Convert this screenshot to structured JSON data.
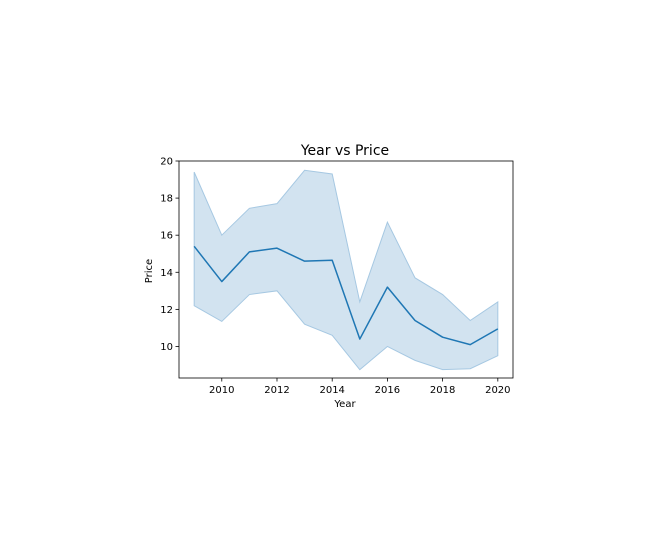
{
  "chart_data": {
    "type": "line",
    "title": "Year vs Price",
    "xlabel": "Year",
    "ylabel": "Price",
    "x": [
      2009,
      2010,
      2011,
      2012,
      2013,
      2014,
      2015,
      2016,
      2017,
      2018,
      2019,
      2020
    ],
    "series": [
      {
        "values": [
          15.4,
          13.5,
          15.1,
          15.3,
          14.6,
          14.65,
          10.4,
          13.2,
          11.4,
          10.5,
          10.1,
          10.95
        ],
        "ci_lower": [
          12.2,
          11.35,
          12.8,
          13.0,
          11.2,
          10.6,
          8.75,
          10.0,
          9.25,
          8.75,
          8.8,
          9.5
        ],
        "ci_upper": [
          19.4,
          16.0,
          17.45,
          17.7,
          19.5,
          19.3,
          12.4,
          16.7,
          13.7,
          12.8,
          11.4,
          12.4
        ],
        "color": "#1f77b4",
        "band_color": "#a6c8e2"
      }
    ],
    "xlim": [
      2008.45,
      2020.55
    ],
    "ylim": [
      8.3,
      20
    ],
    "xticks": [
      2010,
      2012,
      2014,
      2016,
      2018,
      2020
    ],
    "yticks": [
      10,
      12,
      14,
      16,
      18,
      20
    ],
    "grid": false,
    "legend": "none"
  }
}
